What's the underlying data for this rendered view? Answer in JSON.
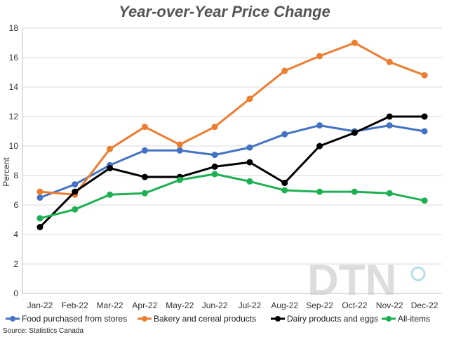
{
  "chart_data": {
    "type": "line",
    "title": "Year-over-Year Price Change",
    "xlabel": "",
    "ylabel": "Percent",
    "ylim": [
      0,
      18
    ],
    "yticks": [
      0,
      2,
      4,
      6,
      8,
      10,
      12,
      14,
      16,
      18
    ],
    "grid": true,
    "legend_position": "bottom",
    "categories": [
      "Jan-22",
      "Feb-22",
      "Mar-22",
      "Apr-22",
      "May-22",
      "Jun-22",
      "Jul-22",
      "Aug-22",
      "Sep-22",
      "Oct-22",
      "Nov-22",
      "Dec-22"
    ],
    "series": [
      {
        "name": "Food purchased from stores",
        "color": "#4472c4",
        "values": [
          6.5,
          7.4,
          8.7,
          9.7,
          9.7,
          9.4,
          9.9,
          10.8,
          11.4,
          11.0,
          11.4,
          11.0
        ]
      },
      {
        "name": "Bakery and cereal products",
        "color": "#ed7d31",
        "values": [
          6.9,
          6.7,
          9.8,
          11.3,
          10.1,
          11.3,
          13.2,
          15.1,
          16.1,
          17.0,
          15.7,
          14.8
        ]
      },
      {
        "name": "Dairy products and eggs",
        "color": "#000000",
        "values": [
          4.5,
          6.9,
          8.5,
          7.9,
          7.9,
          8.6,
          8.9,
          7.5,
          10.0,
          10.9,
          12.0,
          12.0
        ]
      },
      {
        "name": "All-items",
        "color": "#1db052",
        "values": [
          5.1,
          5.7,
          6.7,
          6.8,
          7.7,
          8.1,
          7.6,
          7.0,
          6.9,
          6.9,
          6.8,
          6.3
        ]
      }
    ]
  },
  "source": "Source: Statistics Canada",
  "watermark": "DTN"
}
